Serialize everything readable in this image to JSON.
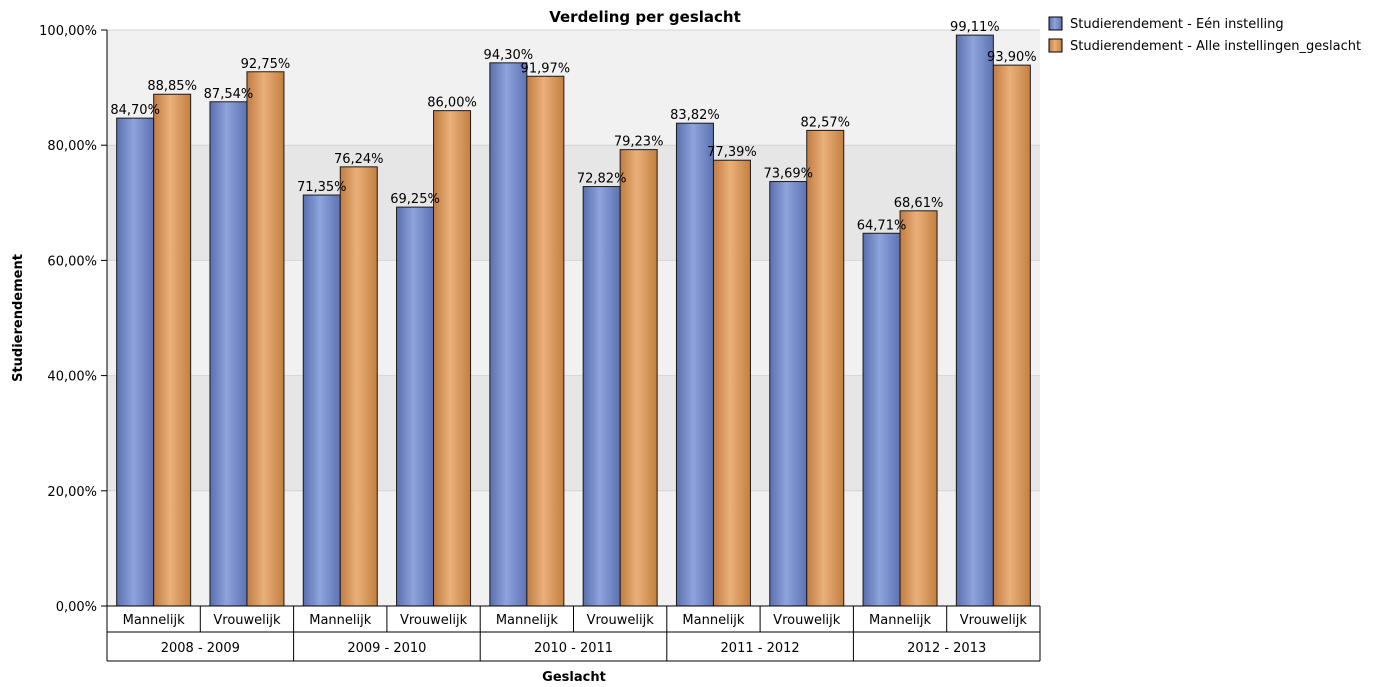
{
  "chart_data": {
    "type": "bar",
    "title": "Verdeling per geslacht",
    "xlabel": "Geslacht",
    "ylabel": "Studierendement",
    "ylim": [
      0,
      100
    ],
    "yticks": [
      "0,00%",
      "20,00%",
      "40,00%",
      "60,00%",
      "80,00%",
      "100,00%"
    ],
    "groups": [
      "2008 - 2009",
      "2009 - 2010",
      "2010 - 2011",
      "2011 - 2012",
      "2012 - 2013"
    ],
    "categories": [
      "Mannelijk",
      "Vrouwelijk",
      "Mannelijk",
      "Vrouwelijk",
      "Mannelijk",
      "Vrouwelijk",
      "Mannelijk",
      "Vrouwelijk",
      "Mannelijk",
      "Vrouwelijk"
    ],
    "series": [
      {
        "name": "Studierendement - Eén instelling",
        "color": "#6f86c4",
        "values": [
          84.7,
          87.54,
          71.35,
          69.25,
          94.3,
          72.82,
          83.82,
          73.69,
          64.71,
          99.11
        ],
        "labels": [
          "84,70%",
          "87,54%",
          "71,35%",
          "69,25%",
          "94,30%",
          "72,82%",
          "83,82%",
          "73,69%",
          "64,71%",
          "99,11%"
        ]
      },
      {
        "name": "Studierendement - Alle instellingen_geslacht",
        "color": "#d6955a",
        "values": [
          88.85,
          92.75,
          76.24,
          86.0,
          91.97,
          79.23,
          77.39,
          82.57,
          68.61,
          93.9
        ],
        "labels": [
          "88,85%",
          "92,75%",
          "76,24%",
          "86,00%",
          "91,97%",
          "79,23%",
          "77,39%",
          "82,57%",
          "68,61%",
          "93,90%"
        ]
      }
    ],
    "grid": true,
    "legend_position": "top-right"
  }
}
